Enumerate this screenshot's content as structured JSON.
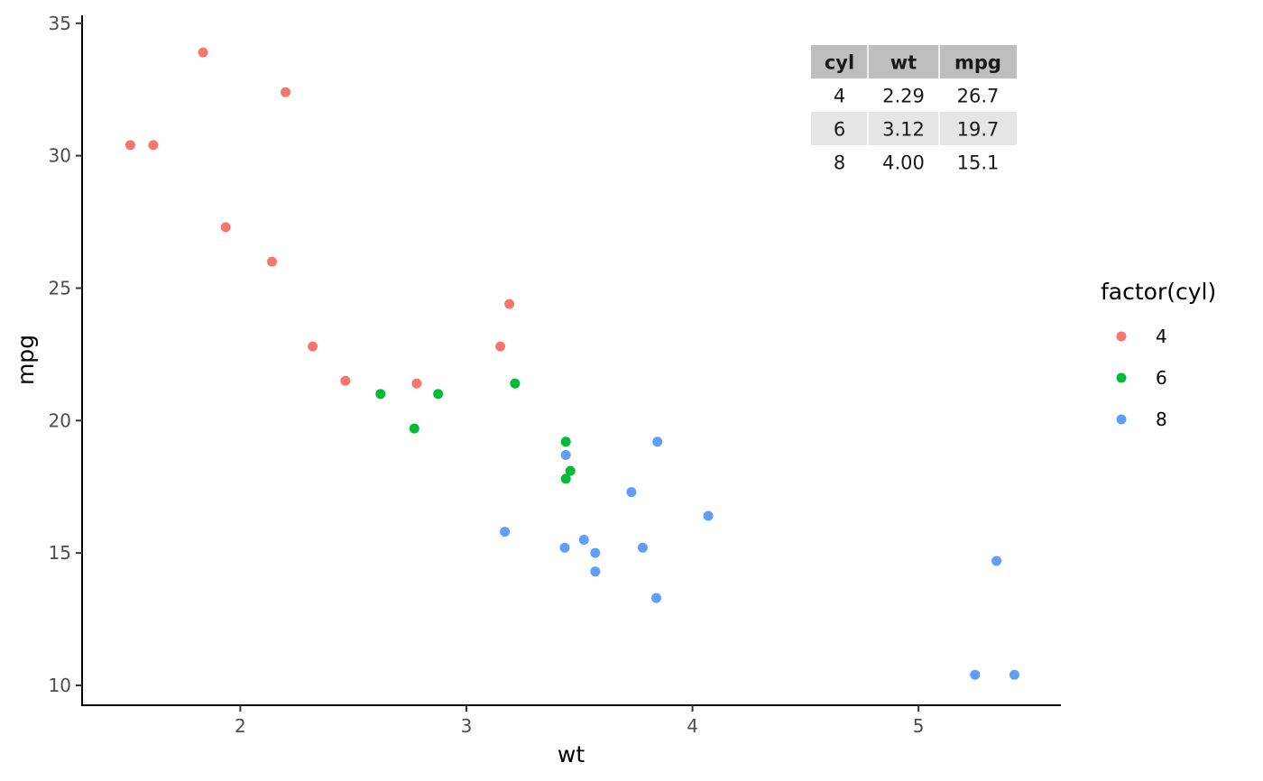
{
  "chart_data": {
    "type": "scatter",
    "xlabel": "wt",
    "ylabel": "mpg",
    "xlim": [
      1.3,
      5.63
    ],
    "ylim": [
      9.25,
      35.3
    ],
    "x_ticks": [
      2,
      3,
      4,
      5
    ],
    "y_ticks": [
      10,
      15,
      20,
      25,
      30,
      35
    ],
    "grid": false,
    "legend": {
      "title": "factor(cyl)",
      "placement": "right",
      "entries": [
        {
          "label": "4",
          "color": "#F8766D"
        },
        {
          "label": "6",
          "color": "#00BA38"
        },
        {
          "label": "8",
          "color": "#619CFF"
        }
      ]
    },
    "series": [
      {
        "name": "4",
        "color": "#F8766D",
        "points": [
          [
            1.513,
            30.4
          ],
          [
            1.615,
            30.4
          ],
          [
            1.835,
            33.9
          ],
          [
            1.935,
            27.3
          ],
          [
            2.14,
            26.0
          ],
          [
            2.2,
            32.4
          ],
          [
            2.32,
            22.8
          ],
          [
            2.465,
            21.5
          ],
          [
            2.78,
            21.4
          ],
          [
            3.15,
            22.8
          ],
          [
            3.19,
            24.4
          ]
        ]
      },
      {
        "name": "6",
        "color": "#00BA38",
        "points": [
          [
            2.62,
            21.0
          ],
          [
            2.77,
            19.7
          ],
          [
            2.875,
            21.0
          ],
          [
            3.215,
            21.4
          ],
          [
            3.44,
            19.2
          ],
          [
            3.44,
            17.8
          ],
          [
            3.46,
            18.1
          ]
        ]
      },
      {
        "name": "8",
        "color": "#619CFF",
        "points": [
          [
            3.17,
            15.8
          ],
          [
            3.435,
            15.2
          ],
          [
            3.44,
            18.7
          ],
          [
            3.52,
            15.5
          ],
          [
            3.57,
            14.3
          ],
          [
            3.57,
            15.0
          ],
          [
            3.73,
            17.3
          ],
          [
            3.78,
            15.2
          ],
          [
            3.84,
            13.3
          ],
          [
            3.845,
            19.2
          ],
          [
            4.07,
            16.4
          ],
          [
            5.25,
            10.4
          ],
          [
            5.345,
            14.7
          ],
          [
            5.424,
            10.4
          ]
        ]
      }
    ],
    "table": {
      "columns": [
        "cyl",
        "wt",
        "mpg"
      ],
      "rows": [
        [
          "4",
          "2.29",
          "26.7"
        ],
        [
          "6",
          "3.12",
          "19.7"
        ],
        [
          "8",
          "4.00",
          "15.1"
        ]
      ],
      "header_bg": "#bebebe",
      "stripe_bg": "#e5e5e5"
    }
  }
}
